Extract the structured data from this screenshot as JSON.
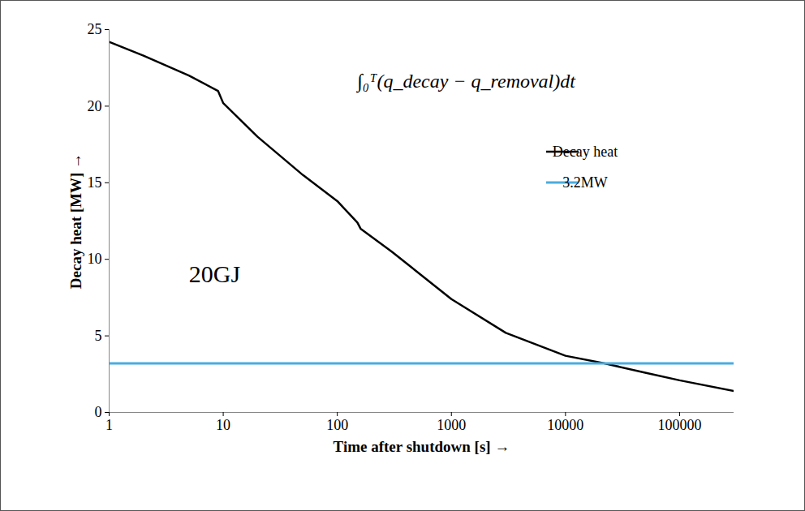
{
  "chart_data": {
    "type": "line",
    "x_label": "Time after shutdown [s]",
    "y_label": "Decay heat [MW]",
    "log": "x",
    "xlim": [
      1,
      300000
    ],
    "xticks": [
      1,
      10,
      100,
      1000,
      10000,
      100000
    ],
    "ylim": [
      0,
      25
    ],
    "yticks": [
      0,
      5,
      10,
      15,
      20,
      25
    ],
    "legend": "right",
    "series": [
      {
        "name": "Decay heat",
        "color": "#000000",
        "x": [
          1,
          2,
          5,
          9,
          10,
          20,
          50,
          100,
          150,
          160,
          300,
          1000,
          3000,
          10000,
          22000,
          50000,
          100000,
          300000
        ],
        "values": [
          24.2,
          23.3,
          22.0,
          21.0,
          20.2,
          18.0,
          15.5,
          13.8,
          12.4,
          12.0,
          10.5,
          7.4,
          5.2,
          3.7,
          3.2,
          2.6,
          2.1,
          1.4
        ]
      },
      {
        "name": "3.2MW",
        "color": "#4bacdf",
        "x": [
          1,
          300000
        ],
        "values": [
          3.2,
          3.2
        ]
      }
    ],
    "annotations": [
      {
        "text": "20GJ",
        "x": 8.4,
        "y": 9.0
      },
      {
        "text": "∫₀ᵀ(q_decay − q_removal)dt",
        "x": 1350,
        "y": 21.6
      }
    ]
  }
}
